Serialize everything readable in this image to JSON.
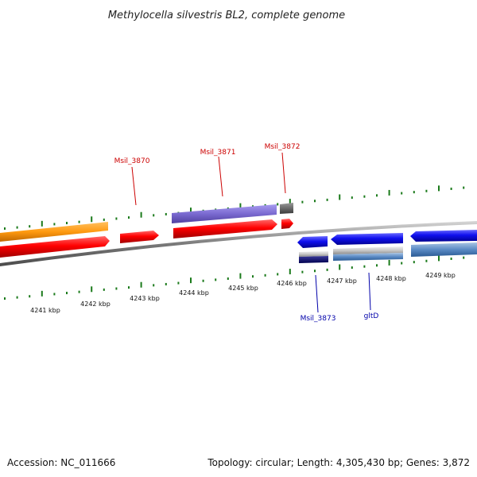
{
  "title": "Methylocella silvestris BL2, complete genome",
  "footer": {
    "accession": "Accession: NC_011666",
    "topology": "Topology: circular; Length: 4,305,430 bp; Genes: 3,872"
  },
  "scale_labels": [
    "4241 kbp",
    "4242 kbp",
    "4243 kbp",
    "4244 kbp",
    "4245 kbp",
    "4246 kbp",
    "4247 kbp",
    "4248 kbp",
    "4249 kbp"
  ],
  "gene_labels": {
    "top": [
      "Msil_3870",
      "Msil_3871",
      "Msil_3872"
    ],
    "bottom": [
      "Msil_3873",
      "gltD"
    ]
  },
  "colors": {
    "forward_cds": "#ff0000",
    "forward_feature": "#ffa020",
    "forward_feature_2": "#8a7ad8",
    "gray_feature": "#6e6e6e",
    "reverse_cds": "#1010ee",
    "reverse_feature": "#5a8ac4",
    "backbone": "#777777",
    "tick": "#1a7a1a",
    "label_forward": "#cc0000",
    "label_reverse": "#0000aa"
  }
}
